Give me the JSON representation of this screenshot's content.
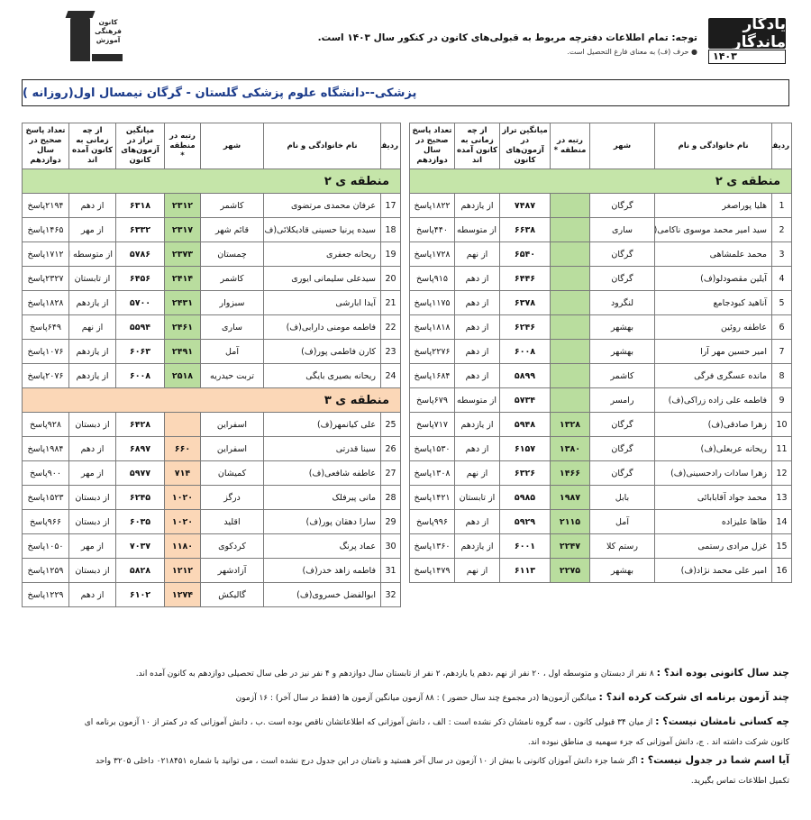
{
  "header": {
    "brand_main": "یادگار ماندگار",
    "brand_year": "۱۴۰۳",
    "notice": "توجه: تمام اطلاعات دفترچه مربوط به قبولی‌های کانون در کنکور سال ۱۴۰۳ است.",
    "notice_sub": "● حرف (ف) به معنای فارغ التحصیل است.",
    "logo_text": "کانون فرهنگی آموزش"
  },
  "banner": "پزشکی--دانشگاه علوم پزشکی گلستان - گرگان نیمسال اول(روزانه )",
  "columns": [
    "ردیف",
    "نام خانوادگی و نام",
    "شهر",
    "رتبه در منطقه *",
    "میانگین تراز در آزمون‌های کانون",
    "از چه زمانی به کانون آمده اند",
    "تعداد پاسخ صحیح در سال دوازدهم"
  ],
  "right_table": {
    "zone_label": "منطقه ی ۲",
    "rows": [
      {
        "n": "1",
        "name": "هلیا پوراصغر",
        "city": "گرگان",
        "rank": "",
        "taraz": "۷۴۸۷",
        "since": "از یازدهم",
        "answers": "۱۸۲۲پاسخ"
      },
      {
        "n": "2",
        "name": "سید امیر محمد موسوی ناکامی(ف)",
        "city": "ساری",
        "rank": "",
        "taraz": "۶۶۳۸",
        "since": "از متوسطه اول",
        "answers": "۴۴۰پاسخ"
      },
      {
        "n": "3",
        "name": "محمد علمشاهی",
        "city": "گرگان",
        "rank": "",
        "taraz": "۶۵۴۰",
        "since": "از نهم",
        "answers": "۱۷۲۸پاسخ"
      },
      {
        "n": "4",
        "name": "آیلین مقصودلو(ف)",
        "city": "گرگان",
        "rank": "",
        "taraz": "۶۴۴۶",
        "since": "از دهم",
        "answers": "۹۱۵پاسخ"
      },
      {
        "n": "5",
        "name": "آناهید کبودجامع",
        "city": "لنگرود",
        "rank": "",
        "taraz": "۶۳۷۸",
        "since": "از دهم",
        "answers": "۱۱۷۵پاسخ"
      },
      {
        "n": "6",
        "name": "عاطفه روئین",
        "city": "بهشهر",
        "rank": "",
        "taraz": "۶۲۴۶",
        "since": "از دهم",
        "answers": "۱۸۱۸پاسخ"
      },
      {
        "n": "7",
        "name": "امیر حسین مهر آرا",
        "city": "بهشهر",
        "rank": "",
        "taraz": "۶۰۰۸",
        "since": "از دهم",
        "answers": "۲۲۷۶پاسخ"
      },
      {
        "n": "8",
        "name": "مانده عسگری فرگی",
        "city": "کاشمر",
        "rank": "",
        "taraz": "۵۸۹۹",
        "since": "از دهم",
        "answers": "۱۶۸۴پاسخ"
      },
      {
        "n": "9",
        "name": "فاطمه علی زاده زراکی(ف)",
        "city": "رامسر",
        "rank": "",
        "taraz": "۵۷۳۴",
        "since": "از متوسطه اول",
        "answers": "۶۷۹پاسخ"
      },
      {
        "n": "10",
        "name": "زهرا صادقی(ف)",
        "city": "گرگان",
        "rank": "۱۳۲۸",
        "taraz": "۵۹۴۸",
        "since": "از یازدهم",
        "answers": "۷۱۷پاسخ"
      },
      {
        "n": "11",
        "name": "ریحانه عربعلی(ف)",
        "city": "گرگان",
        "rank": "۱۳۸۰",
        "taraz": "۶۱۵۷",
        "since": "از دهم",
        "answers": "۱۵۳۰پاسخ"
      },
      {
        "n": "12",
        "name": "زهرا سادات رادحسینی(ف)",
        "city": "گرگان",
        "rank": "۱۴۶۶",
        "taraz": "۶۳۲۶",
        "since": "از نهم",
        "answers": "۱۳۰۸پاسخ"
      },
      {
        "n": "13",
        "name": "محمد جواد آقابابائی",
        "city": "بابل",
        "rank": "۱۹۸۷",
        "taraz": "۵۹۸۵",
        "since": "از تابستان",
        "answers": "۱۴۲۱پاسخ"
      },
      {
        "n": "14",
        "name": "طاها علیزاده",
        "city": "آمل",
        "rank": "۲۱۱۵",
        "taraz": "۵۹۲۹",
        "since": "از دهم",
        "answers": "۹۹۶پاسخ"
      },
      {
        "n": "15",
        "name": "غزل مرادی رستمی",
        "city": "رستم کلا",
        "rank": "۲۲۴۷",
        "taraz": "۶۰۰۱",
        "since": "از یازدهم",
        "answers": "۱۳۶۰پاسخ"
      },
      {
        "n": "16",
        "name": "امیر علی محمد نژاد(ف)",
        "city": "بهشهر",
        "rank": "۲۲۷۵",
        "taraz": "۶۱۱۳",
        "since": "از نهم",
        "answers": "۱۴۷۹پاسخ"
      }
    ]
  },
  "left_table": {
    "zone2_label": "منطقه ی ۲",
    "zone3_label": "منطقه ی ۳",
    "zone2_rows": [
      {
        "n": "17",
        "name": "عرفان محمدی مرتضوی",
        "city": "کاشمر",
        "rank": "۲۳۱۲",
        "taraz": "۶۳۱۸",
        "since": "از دهم",
        "answers": "۲۱۹۴پاسخ"
      },
      {
        "n": "18",
        "name": "سیده پرنیا حسینی قادیکلائی(ف)",
        "city": "قائم شهر",
        "rank": "۲۳۱۷",
        "taraz": "۶۳۳۲",
        "since": "از مهر",
        "answers": "۱۴۶۵پاسخ"
      },
      {
        "n": "19",
        "name": "ریحانه جعفری",
        "city": "چمستان",
        "rank": "۲۳۷۳",
        "taraz": "۵۷۸۶",
        "since": "از متوسطه اول",
        "answers": "۱۷۱۲پاسخ"
      },
      {
        "n": "20",
        "name": "سیدعلی سلیمانی ایوری",
        "city": "کاشمر",
        "rank": "۲۴۱۴",
        "taraz": "۶۴۵۶",
        "since": "از تابستان",
        "answers": "۲۳۲۷پاسخ"
      },
      {
        "n": "21",
        "name": "آیدا ابارشی",
        "city": "سبزوار",
        "rank": "۲۴۳۱",
        "taraz": "۵۷۰۰",
        "since": "از یازدهم",
        "answers": "۱۸۲۸پاسخ"
      },
      {
        "n": "22",
        "name": "فاطمه مومنی دارابی(ف)",
        "city": "ساری",
        "rank": "۲۴۶۱",
        "taraz": "۵۵۹۴",
        "since": "از نهم",
        "answers": "۶۴۹پاسخ"
      },
      {
        "n": "23",
        "name": "کارن فاطمی پور(ف)",
        "city": "آمل",
        "rank": "۲۴۹۱",
        "taraz": "۶۰۶۳",
        "since": "از یازدهم",
        "answers": "۱۰۷۶پاسخ"
      },
      {
        "n": "24",
        "name": "ریحانه بصیری بایگی",
        "city": "تربت حیدریه",
        "rank": "۲۵۱۸",
        "taraz": "۶۰۰۸",
        "since": "از یازدهم",
        "answers": "۲۰۷۶پاسخ"
      }
    ],
    "zone3_rows": [
      {
        "n": "25",
        "name": "علی کیانمهر(ف)",
        "city": "اسفراین",
        "rank": "",
        "taraz": "۶۴۲۸",
        "since": "از دبستان",
        "answers": "۹۲۸پاسخ"
      },
      {
        "n": "26",
        "name": "سینا قدرتی",
        "city": "اسفراین",
        "rank": "۶۶۰",
        "taraz": "۶۸۹۷",
        "since": "از دهم",
        "answers": "۱۹۸۴پاسخ"
      },
      {
        "n": "27",
        "name": "عاطفه شافعی(ف)",
        "city": "کمیشان",
        "rank": "۷۱۴",
        "taraz": "۵۹۷۷",
        "since": "از مهر",
        "answers": "۹۰۰پاسخ"
      },
      {
        "n": "28",
        "name": "مانی پیرفلک",
        "city": "درگز",
        "rank": "۱۰۲۰",
        "taraz": "۶۲۴۵",
        "since": "از دبستان",
        "answers": "۱۵۲۳پاسخ"
      },
      {
        "n": "29",
        "name": "سارا دهقان پور(ف)",
        "city": "اقلید",
        "rank": "۱۰۲۰",
        "taraz": "۶۰۳۵",
        "since": "از دبستان",
        "answers": "۹۶۶پاسخ"
      },
      {
        "n": "30",
        "name": "عماد پرنگ",
        "city": "کردکوی",
        "rank": "۱۱۸۰",
        "taraz": "۷۰۳۷",
        "since": "از مهر",
        "answers": "۱۰۵۰پاسخ"
      },
      {
        "n": "31",
        "name": "فاطمه زاهد خدر(ف)",
        "city": "آزادشهر",
        "rank": "۱۲۱۲",
        "taraz": "۵۸۲۸",
        "since": "از دبستان",
        "answers": "۱۲۵۹پاسخ"
      },
      {
        "n": "32",
        "name": "ابوالفضل خسروی(ف)",
        "city": "گالیکش",
        "rank": "۱۲۷۴",
        "taraz": "۶۱۰۲",
        "since": "از دهم",
        "answers": "۱۲۲۹پاسخ"
      }
    ]
  },
  "description": {
    "q1_title": "چند سال کانونی بوده اند؟ :",
    "q1_text": " ۸ نفر از دبستان و متوسطه اول ، ۲۰ نفر از نهم ،دهم یا یازدهم، ۲ نفر از تابستان سال دوازدهم و ۴ نفر نیز در طی سال تحصیلی دوازدهم به کانون آمده اند.",
    "q2_title": "چند آزمون برنامه ای شرکت کرده اند؟ :",
    "q2_text": " میانگین آزمون‌ها (در مجموع چند سال حضور ) : ۸۸ آزمون     میانگین آزمون ها (فقط در سال آخر) : ۱۶ آزمون",
    "q3_title": "چه کسانی نامشان نیست؟ :",
    "q3_text": " از میان ۳۴ قبولی کانون ، سه گروه نامشان ذکر نشده است : الف ، دانش آموزانی که اطلاعاتشان ناقص بوده است .ب ، دانش آموزانی که در کمتر از ۱۰ آزمون برنامه ای",
    "q3_text2": "کانون شرکت داشته اند . ج، دانش آموزانی که جزء سهمیه ی مناطق نبوده اند.",
    "q4_title": "آیا اسم شما در جدول نیست؟ :",
    "q4_text": " اگر شما جزء دانش آموزان کانونی با بیش از ۱۰ آزمون در سال آخر هستید و نامتان در این جدول درج نشده است ، می توانید با شماره ۰۲۱۸۴۵۱ داخلی ۳۲۰۵ واحد",
    "q4_text2": "تکمیل اطلاعات تماس بگیرید."
  },
  "colors": {
    "zone2": "#c5e5a9",
    "zone3": "#fbd7b7",
    "banner_text": "#1a3a8a"
  }
}
